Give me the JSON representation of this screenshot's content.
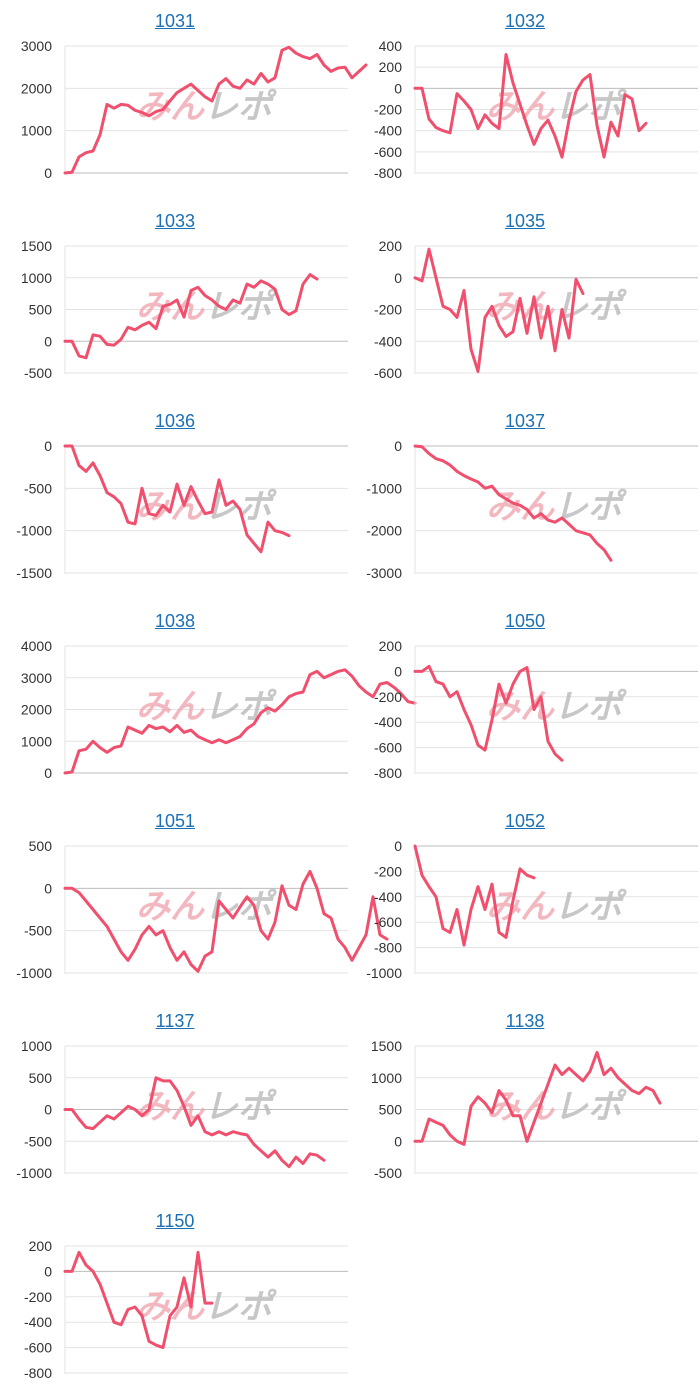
{
  "colors": {
    "line": "#f0506e",
    "grid": "#e3e3e3",
    "zero": "#bdbdbd",
    "title": "#1a6fb5",
    "watermark_pink": "#f0a0aa",
    "watermark_gray": "#b5b5b5"
  },
  "watermark_text": "みんレポ",
  "chart_data": [
    {
      "type": "line",
      "title": "1031",
      "ylim": [
        0,
        3000
      ],
      "ticks": [
        3000,
        2000,
        1000,
        0
      ],
      "values": [
        0,
        20,
        380,
        480,
        520,
        900,
        1620,
        1530,
        1620,
        1600,
        1480,
        1430,
        1350,
        1450,
        1500,
        1700,
        1900,
        2000,
        2100,
        1950,
        1800,
        1700,
        2100,
        2230,
        2050,
        2000,
        2200,
        2100,
        2350,
        2150,
        2250,
        2900,
        2970,
        2830,
        2750,
        2700,
        2800,
        2550,
        2400,
        2480,
        2500,
        2250,
        2400,
        2550
      ]
    },
    {
      "type": "line",
      "title": "1032",
      "ylim": [
        -800,
        400
      ],
      "ticks": [
        400,
        200,
        0,
        -200,
        -400,
        -600,
        -800
      ],
      "values": [
        0,
        0,
        -290,
        -370,
        -400,
        -420,
        -50,
        -120,
        -200,
        -380,
        -250,
        -330,
        -380,
        320,
        50,
        -150,
        -350,
        -530,
        -380,
        -300,
        -450,
        -650,
        -300,
        -30,
        80,
        130,
        -350,
        -650,
        -320,
        -450,
        -60,
        -100,
        -400,
        -330
      ]
    },
    {
      "type": "line",
      "title": "1033",
      "ylim": [
        -500,
        1500
      ],
      "ticks": [
        1500,
        1000,
        500,
        0,
        -500
      ],
      "values": [
        0,
        0,
        -230,
        -260,
        100,
        80,
        -50,
        -60,
        30,
        220,
        180,
        250,
        300,
        200,
        550,
        580,
        650,
        380,
        800,
        850,
        720,
        650,
        550,
        500,
        650,
        600,
        900,
        850,
        950,
        900,
        820,
        500,
        420,
        480,
        900,
        1050,
        980
      ]
    },
    {
      "type": "line",
      "title": "1035",
      "ylim": [
        -600,
        200
      ],
      "ticks": [
        200,
        0,
        -200,
        -400,
        -600
      ],
      "values": [
        0,
        -20,
        180,
        0,
        -180,
        -200,
        -250,
        -80,
        -450,
        -590,
        -250,
        -180,
        -300,
        -370,
        -340,
        -130,
        -350,
        -120,
        -380,
        -180,
        -460,
        -200,
        -380,
        -10,
        -100
      ]
    },
    {
      "type": "line",
      "title": "1036",
      "ylim": [
        -1500,
        0
      ],
      "ticks": [
        0,
        -500,
        -1000,
        -1500
      ],
      "values": [
        0,
        0,
        -230,
        -300,
        -200,
        -350,
        -550,
        -600,
        -680,
        -900,
        -920,
        -500,
        -800,
        -820,
        -700,
        -780,
        -450,
        -700,
        -480,
        -650,
        -800,
        -780,
        -400,
        -700,
        -650,
        -750,
        -1050,
        -1150,
        -1250,
        -900,
        -1000,
        -1020,
        -1060
      ]
    },
    {
      "type": "line",
      "title": "1037",
      "ylim": [
        -3000,
        0
      ],
      "ticks": [
        0,
        -1000,
        -2000,
        -3000
      ],
      "values": [
        0,
        -20,
        -180,
        -300,
        -350,
        -450,
        -600,
        -700,
        -780,
        -850,
        -1000,
        -950,
        -1150,
        -1250,
        -1350,
        -1400,
        -1500,
        -1700,
        -1600,
        -1750,
        -1800,
        -1700,
        -1850,
        -2000,
        -2050,
        -2100,
        -2300,
        -2450,
        -2700
      ]
    },
    {
      "type": "line",
      "title": "1038",
      "ylim": [
        0,
        4000
      ],
      "ticks": [
        4000,
        3000,
        2000,
        1000,
        0
      ],
      "values": [
        0,
        30,
        700,
        750,
        1000,
        800,
        650,
        800,
        850,
        1450,
        1350,
        1250,
        1500,
        1400,
        1450,
        1300,
        1500,
        1280,
        1350,
        1150,
        1050,
        950,
        1050,
        950,
        1050,
        1150,
        1400,
        1550,
        1900,
        2050,
        1950,
        2150,
        2400,
        2500,
        2550,
        3100,
        3200,
        3000,
        3100,
        3200,
        3250,
        3050,
        2750,
        2550,
        2400,
        2800,
        2850,
        2700,
        2500,
        2250,
        2200
      ]
    },
    {
      "type": "line",
      "title": "1050",
      "ylim": [
        -800,
        200
      ],
      "ticks": [
        200,
        0,
        -200,
        -400,
        -600,
        -800
      ],
      "values": [
        0,
        0,
        40,
        -80,
        -100,
        -200,
        -160,
        -300,
        -420,
        -580,
        -620,
        -380,
        -100,
        -250,
        -100,
        0,
        30,
        -300,
        -200,
        -550,
        -650,
        -700
      ]
    },
    {
      "type": "line",
      "title": "1051",
      "ylim": [
        -1000,
        500
      ],
      "ticks": [
        500,
        0,
        -500,
        -1000
      ],
      "values": [
        0,
        0,
        -50,
        -150,
        -250,
        -350,
        -450,
        -600,
        -750,
        -850,
        -720,
        -550,
        -450,
        -550,
        -500,
        -700,
        -850,
        -750,
        -900,
        -980,
        -800,
        -750,
        -150,
        -250,
        -350,
        -220,
        -100,
        -200,
        -500,
        -600,
        -400,
        30,
        -200,
        -250,
        50,
        200,
        0,
        -300,
        -350,
        -600,
        -700,
        -850,
        -700,
        -550,
        -100,
        -550,
        -600
      ]
    },
    {
      "type": "line",
      "title": "1052",
      "ylim": [
        -1000,
        0
      ],
      "ticks": [
        0,
        -200,
        -400,
        -600,
        -800,
        -1000
      ],
      "values": [
        0,
        -230,
        -320,
        -400,
        -650,
        -680,
        -500,
        -780,
        -500,
        -320,
        -500,
        -300,
        -680,
        -720,
        -430,
        -180,
        -230,
        -250
      ]
    },
    {
      "type": "line",
      "title": "1137",
      "ylim": [
        -1000,
        1000
      ],
      "ticks": [
        1000,
        500,
        0,
        -500,
        -1000
      ],
      "values": [
        0,
        0,
        -150,
        -280,
        -300,
        -200,
        -100,
        -150,
        -50,
        50,
        0,
        -100,
        0,
        500,
        450,
        450,
        300,
        50,
        -250,
        -100,
        -350,
        -400,
        -350,
        -400,
        -350,
        -380,
        -400,
        -550,
        -650,
        -750,
        -650,
        -800,
        -900,
        -750,
        -850,
        -700,
        -720,
        -800
      ]
    },
    {
      "type": "line",
      "title": "1138",
      "ylim": [
        -500,
        1500
      ],
      "ticks": [
        1500,
        1000,
        500,
        0,
        -500
      ],
      "values": [
        0,
        0,
        350,
        300,
        250,
        100,
        0,
        -50,
        550,
        700,
        600,
        450,
        800,
        650,
        400,
        400,
        0,
        300,
        600,
        900,
        1200,
        1050,
        1150,
        1050,
        950,
        1100,
        1400,
        1050,
        1150,
        1000,
        900,
        800,
        750,
        850,
        800,
        600
      ]
    },
    {
      "type": "line",
      "title": "1150",
      "ylim": [
        -800,
        200
      ],
      "ticks": [
        200,
        0,
        -200,
        -400,
        -600,
        -800
      ],
      "values": [
        0,
        0,
        150,
        50,
        0,
        -100,
        -250,
        -400,
        -420,
        -300,
        -280,
        -350,
        -550,
        -580,
        -600,
        -350,
        -280,
        -50,
        -280,
        150,
        -250,
        -250
      ]
    }
  ]
}
